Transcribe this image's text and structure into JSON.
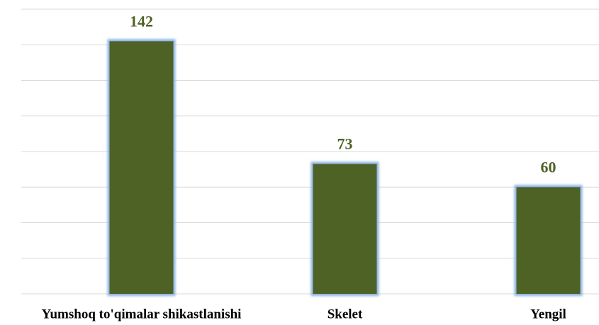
{
  "chart_data": {
    "type": "bar",
    "categories": [
      "Yumshoq to'qimalar shikastlanishi",
      "Skelet",
      "Yengil"
    ],
    "values": [
      142,
      73,
      60
    ],
    "color": "#4f6228",
    "ylim": [
      0,
      160
    ],
    "yticks": [
      0,
      20,
      40,
      60,
      80,
      100,
      120,
      140,
      160
    ],
    "grid": true
  }
}
